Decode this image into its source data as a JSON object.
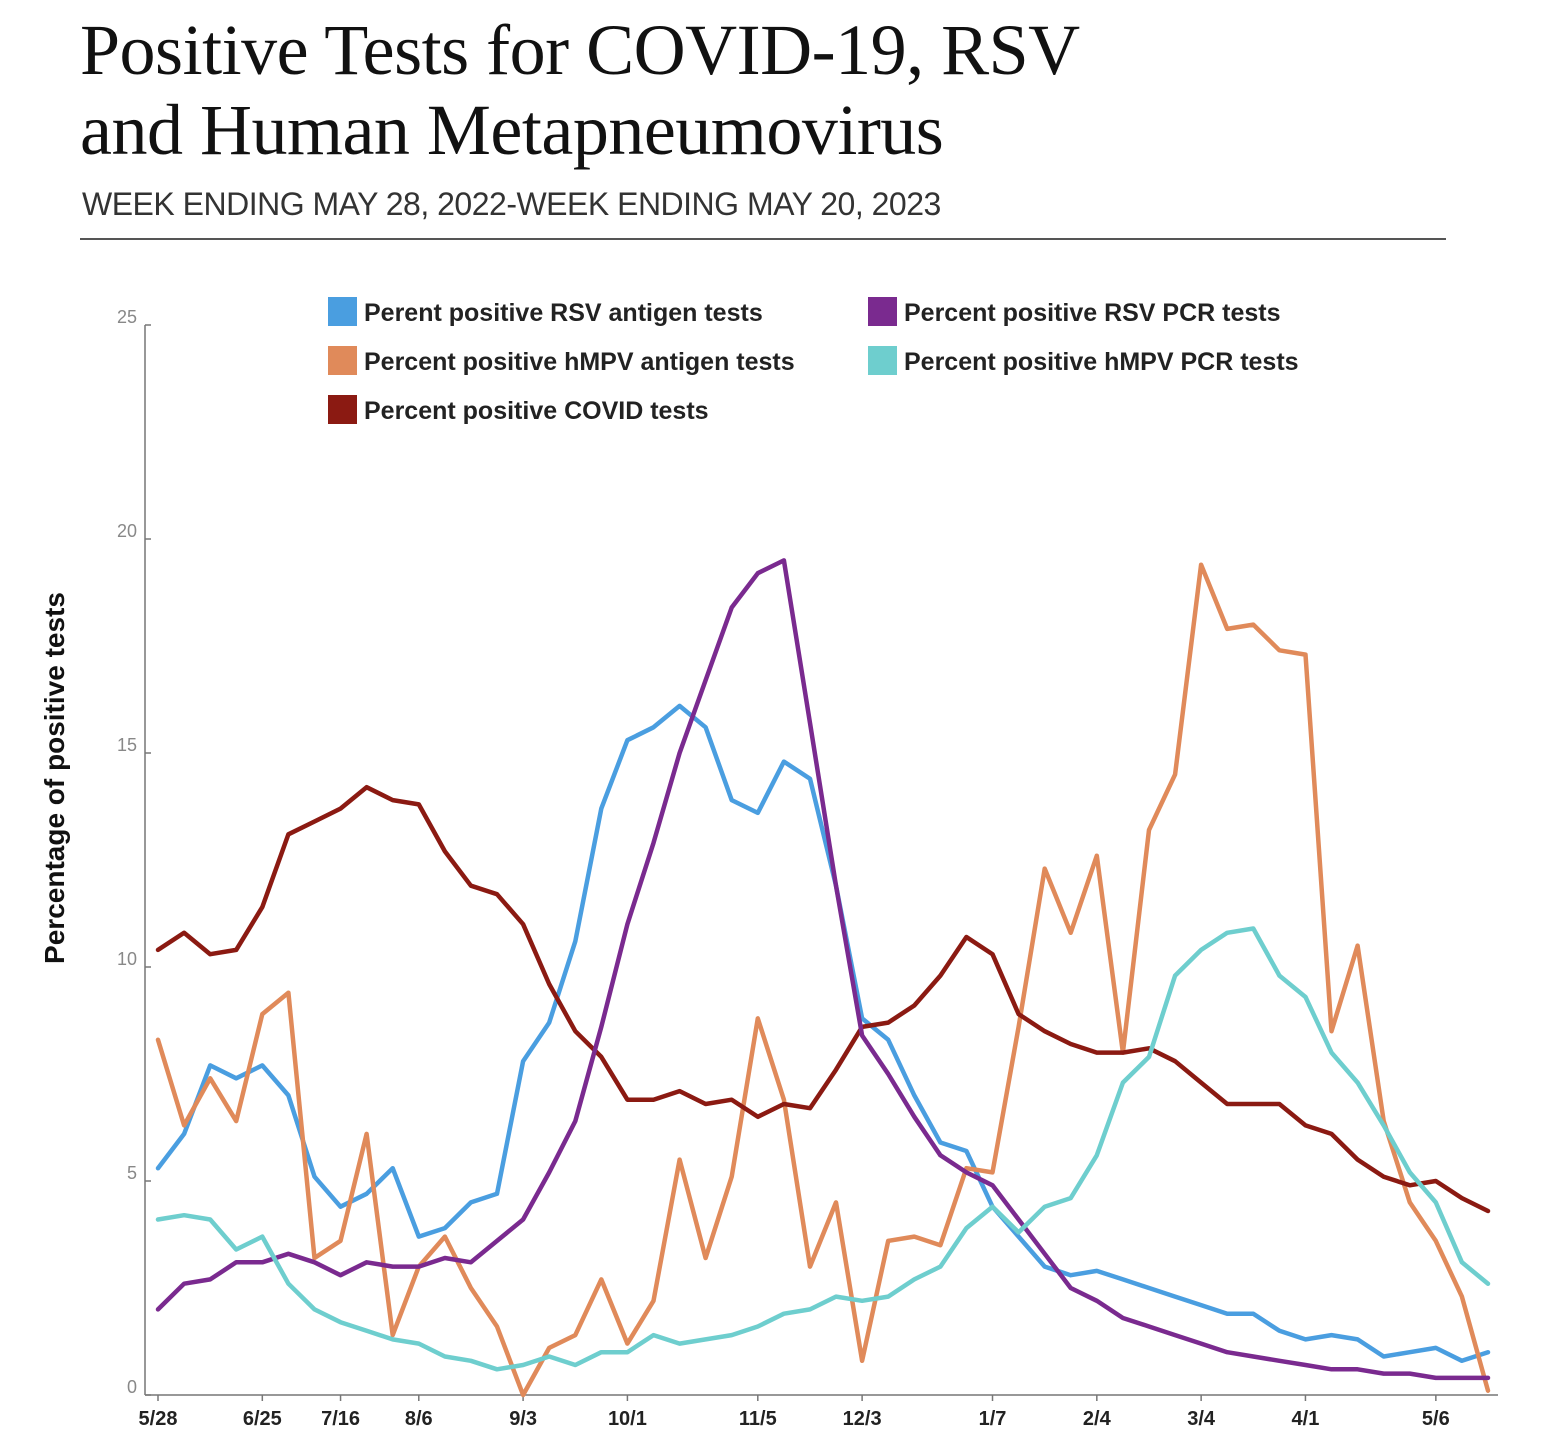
{
  "chart_data": {
    "type": "line",
    "title_line1": "Positive Tests for COVID-19, RSV",
    "title_line2": "and Human Metapneumovirus",
    "subtitle": "WEEK ENDING MAY 28, 2022-WEEK ENDING MAY 20, 2023",
    "ylabel": "Percentage of positive tests",
    "xlabel": "",
    "ylim": [
      0,
      25
    ],
    "yticks": [
      "0",
      "5",
      "10",
      "15",
      "20",
      "25"
    ],
    "xtick_labels": [
      {
        "label": "5/28",
        "index": 0
      },
      {
        "label": "6/25",
        "index": 4
      },
      {
        "label": "7/16",
        "index": 7
      },
      {
        "label": "8/6",
        "index": 10
      },
      {
        "label": "9/3",
        "index": 14
      },
      {
        "label": "10/1",
        "index": 18
      },
      {
        "label": "11/5",
        "index": 23
      },
      {
        "label": "12/3",
        "index": 27
      },
      {
        "label": "1/7",
        "index": 32
      },
      {
        "label": "2/4",
        "index": 36
      },
      {
        "label": "3/4",
        "index": 40
      },
      {
        "label": "4/1",
        "index": 44
      },
      {
        "label": "5/6",
        "index": 49
      }
    ],
    "num_weeks": 52,
    "series": [
      {
        "name": "Perent positive RSV antigen tests",
        "color": "#4a9ee0",
        "values": [
          5.3,
          6.1,
          7.7,
          7.4,
          7.7,
          7.0,
          5.1,
          4.4,
          4.7,
          5.3,
          3.7,
          3.9,
          4.5,
          4.7,
          7.8,
          8.7,
          10.6,
          13.7,
          15.3,
          15.6,
          16.1,
          15.6,
          13.9,
          13.6,
          14.8,
          14.4,
          11.9,
          8.8,
          8.3,
          7.0,
          5.9,
          5.7,
          4.4,
          3.7,
          3.0,
          2.8,
          2.9,
          2.7,
          2.5,
          2.3,
          2.1,
          1.9,
          1.9,
          1.5,
          1.3,
          1.4,
          1.3,
          0.9,
          1.0,
          1.1,
          0.8,
          1.0
        ]
      },
      {
        "name": "Percent positive hMPV antigen tests",
        "color": "#e08a5a",
        "values": [
          8.3,
          6.3,
          7.4,
          6.4,
          8.9,
          9.4,
          3.2,
          3.6,
          6.1,
          1.4,
          3.0,
          3.7,
          2.5,
          1.6,
          0.0,
          1.1,
          1.4,
          2.7,
          1.2,
          2.2,
          5.5,
          3.2,
          5.1,
          8.8,
          6.9,
          3.0,
          4.5,
          0.8,
          3.6,
          3.7,
          3.5,
          5.3,
          5.2,
          8.6,
          12.3,
          10.8,
          12.6,
          8.0,
          13.2,
          14.5,
          19.4,
          17.9,
          18.0,
          17.4,
          17.3,
          8.5,
          10.5,
          6.4,
          4.5,
          3.6,
          2.3,
          0.1
        ]
      },
      {
        "name": "Percent positive COVID tests",
        "color": "#8b1a12",
        "values": [
          10.4,
          10.8,
          10.3,
          10.4,
          11.4,
          13.1,
          13.4,
          13.7,
          14.2,
          13.9,
          13.8,
          12.7,
          11.9,
          11.7,
          11.0,
          9.6,
          8.5,
          7.9,
          6.9,
          6.9,
          7.1,
          6.8,
          6.9,
          6.5,
          6.8,
          6.7,
          7.6,
          8.6,
          8.7,
          9.1,
          9.8,
          10.7,
          10.3,
          8.9,
          8.5,
          8.2,
          8.0,
          8.0,
          8.1,
          7.8,
          7.3,
          6.8,
          6.8,
          6.8,
          6.3,
          6.1,
          5.5,
          5.1,
          4.9,
          5.0,
          4.6,
          4.3
        ]
      },
      {
        "name": "Percent positive RSV PCR tests",
        "color": "#7a2a8f",
        "values": [
          2.0,
          2.6,
          2.7,
          3.1,
          3.1,
          3.3,
          3.1,
          2.8,
          3.1,
          3.0,
          3.0,
          3.2,
          3.1,
          3.6,
          4.1,
          5.2,
          6.4,
          8.6,
          11.0,
          12.9,
          15.0,
          16.7,
          18.4,
          19.2,
          19.5,
          15.7,
          11.9,
          8.4,
          7.5,
          6.5,
          5.6,
          5.2,
          4.9,
          4.1,
          3.3,
          2.5,
          2.2,
          1.8,
          1.6,
          1.4,
          1.2,
          1.0,
          0.9,
          0.8,
          0.7,
          0.6,
          0.6,
          0.5,
          0.5,
          0.4,
          0.4,
          0.4
        ]
      },
      {
        "name": "Percent positive hMPV PCR tests",
        "color": "#6ecece",
        "values": [
          4.1,
          4.2,
          4.1,
          3.4,
          3.7,
          2.6,
          2.0,
          1.7,
          1.5,
          1.3,
          1.2,
          0.9,
          0.8,
          0.6,
          0.7,
          0.9,
          0.7,
          1.0,
          1.0,
          1.4,
          1.2,
          1.3,
          1.4,
          1.6,
          1.9,
          2.0,
          2.3,
          2.2,
          2.3,
          2.7,
          3.0,
          3.9,
          4.4,
          3.8,
          4.4,
          4.6,
          5.6,
          7.3,
          7.9,
          9.8,
          10.4,
          10.8,
          10.9,
          9.8,
          9.3,
          8.0,
          7.3,
          6.3,
          5.2,
          4.5,
          3.1,
          2.6
        ]
      }
    ],
    "legend_layout": [
      {
        "series": 0,
        "col": 0,
        "row": 0
      },
      {
        "series": 3,
        "col": 1,
        "row": 0
      },
      {
        "series": 1,
        "col": 0,
        "row": 1
      },
      {
        "series": 4,
        "col": 1,
        "row": 1
      },
      {
        "series": 2,
        "col": 0,
        "row": 2
      }
    ]
  }
}
